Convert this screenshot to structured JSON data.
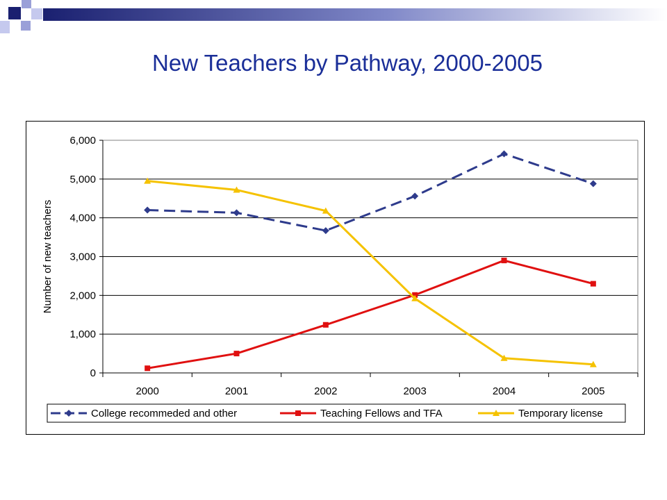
{
  "slide": {
    "title": "New Teachers by Pathway, 2000-2005",
    "title_color": "#1a2e98"
  },
  "chart_data": {
    "type": "line",
    "title": "",
    "xlabel": "",
    "ylabel": "Number of new teachers",
    "categories": [
      "2000",
      "2001",
      "2002",
      "2003",
      "2004",
      "2005"
    ],
    "ylim": [
      0,
      6000
    ],
    "yticks": [
      "0",
      "1,000",
      "2,000",
      "3,000",
      "4,000",
      "5,000",
      "6,000"
    ],
    "grid": true,
    "legend_position": "bottom",
    "series": [
      {
        "name": "College recommeded and other",
        "values": [
          4200,
          4130,
          3670,
          4560,
          5650,
          4880
        ],
        "color": "#2e3b8c",
        "marker": "diamond",
        "dashed": true
      },
      {
        "name": "Teaching Fellows and TFA",
        "values": [
          120,
          500,
          1240,
          2010,
          2900,
          2300
        ],
        "color": "#e01010",
        "marker": "square",
        "dashed": false
      },
      {
        "name": "Temporary license",
        "values": [
          4950,
          4720,
          4180,
          1920,
          380,
          220
        ],
        "color": "#f5c200",
        "marker": "triangle",
        "dashed": false
      }
    ]
  }
}
